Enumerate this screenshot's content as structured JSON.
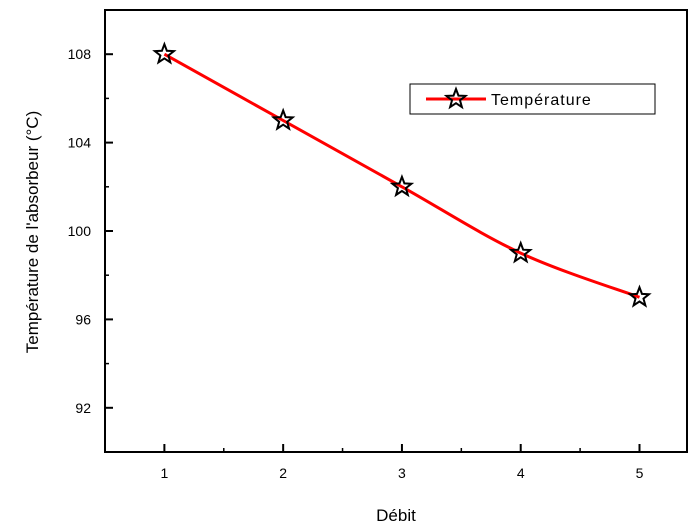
{
  "chart_data": {
    "type": "line",
    "x": [
      1,
      2,
      3,
      4,
      5
    ],
    "series": [
      {
        "name": "Température",
        "values": [
          108,
          105,
          102,
          99,
          97
        ],
        "color": "#ff0000",
        "marker": "star-icon"
      }
    ],
    "xlabel": "Débit",
    "ylabel": "Température de l'absorbeur (°C)",
    "xlim": [
      0.5,
      5.4
    ],
    "ylim": [
      90,
      110
    ],
    "xticks": [
      {
        "value": 1,
        "label": "1"
      },
      {
        "value": 2,
        "label": "2"
      },
      {
        "value": 3,
        "label": "3"
      },
      {
        "value": 4,
        "label": "4"
      },
      {
        "value": 5,
        "label": "5"
      }
    ],
    "yticks": [
      {
        "value": 92,
        "label": "92"
      },
      {
        "value": 96,
        "label": "96"
      },
      {
        "value": 100,
        "label": "100"
      },
      {
        "value": 104,
        "label": "104"
      },
      {
        "value": 108,
        "label": "108"
      }
    ],
    "grid": false,
    "legend_position": "top-right",
    "line_color": "#ff0000",
    "marker_color": "#000000"
  }
}
